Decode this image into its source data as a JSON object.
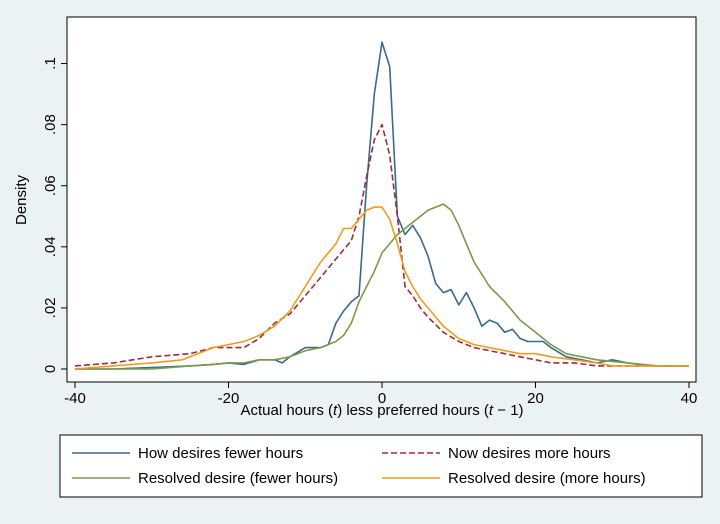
{
  "chart_data": {
    "type": "line",
    "xlabel_parts": [
      "Actual hours (",
      "t",
      ") less preferred hours (",
      "t",
      " − 1)"
    ],
    "ylabel": "Density",
    "xlim": [
      -40,
      40
    ],
    "ylim": [
      0,
      0.11
    ],
    "xticks": [
      -40,
      -20,
      0,
      20,
      40
    ],
    "xtick_labels": [
      "-40",
      "-20",
      "0",
      "20",
      "40"
    ],
    "yticks": [
      0,
      0.02,
      0.04,
      0.06,
      0.08,
      0.1
    ],
    "ytick_labels": [
      "0",
      ".02",
      ".04",
      ".06",
      ".08",
      ".1"
    ],
    "grid": false,
    "legend_position": "bottom",
    "series": [
      {
        "name": "How desires fewer hours",
        "color": "#3a6a8e",
        "dash": "solid",
        "x": [
          -40,
          -35,
          -30,
          -25,
          -22,
          -20,
          -18,
          -16,
          -14,
          -13,
          -12,
          -10,
          -9,
          -8,
          -7,
          -6,
          -5,
          -4,
          -3,
          -2,
          -1,
          0,
          1,
          2,
          3,
          4,
          5,
          6,
          7,
          8,
          9,
          10,
          11,
          12,
          13,
          14,
          15,
          16,
          17,
          18,
          19,
          20,
          21,
          22,
          24,
          26,
          28,
          30,
          32,
          35,
          40
        ],
        "y": [
          0.0,
          0.0,
          0.0005,
          0.001,
          0.0015,
          0.002,
          0.0015,
          0.003,
          0.003,
          0.002,
          0.004,
          0.007,
          0.007,
          0.007,
          0.008,
          0.015,
          0.019,
          0.022,
          0.024,
          0.06,
          0.09,
          0.107,
          0.099,
          0.05,
          0.044,
          0.047,
          0.043,
          0.037,
          0.028,
          0.025,
          0.026,
          0.021,
          0.025,
          0.02,
          0.014,
          0.016,
          0.015,
          0.012,
          0.013,
          0.01,
          0.009,
          0.009,
          0.009,
          0.007,
          0.004,
          0.003,
          0.002,
          0.003,
          0.002,
          0.001,
          0.001
        ]
      },
      {
        "name": "Now desires more hours",
        "color": "#9b2d3c",
        "dash": "dashed",
        "x": [
          -40,
          -35,
          -30,
          -25,
          -22,
          -20,
          -18,
          -16,
          -14,
          -12,
          -10,
          -8,
          -6,
          -4,
          -3,
          -2,
          -1,
          0,
          1,
          2,
          3,
          4,
          5,
          6,
          8,
          10,
          12,
          14,
          16,
          18,
          20,
          22,
          25,
          28,
          30,
          35,
          40
        ],
        "y": [
          0.001,
          0.002,
          0.004,
          0.005,
          0.007,
          0.007,
          0.007,
          0.01,
          0.015,
          0.018,
          0.024,
          0.03,
          0.036,
          0.042,
          0.05,
          0.063,
          0.075,
          0.08,
          0.07,
          0.05,
          0.027,
          0.024,
          0.02,
          0.017,
          0.012,
          0.009,
          0.007,
          0.006,
          0.005,
          0.004,
          0.003,
          0.002,
          0.002,
          0.001,
          0.001,
          0.001,
          0.001
        ]
      },
      {
        "name": "Resolved desire (fewer hours)",
        "color": "#7a9a4a",
        "dash": "solid",
        "x": [
          -40,
          -35,
          -30,
          -25,
          -22,
          -20,
          -18,
          -16,
          -14,
          -12,
          -10,
          -8,
          -6,
          -5,
          -4,
          -3,
          -2,
          -1,
          0,
          2,
          4,
          6,
          7,
          8,
          9,
          10,
          11,
          12,
          14,
          16,
          18,
          20,
          22,
          24,
          28,
          32,
          36,
          40
        ],
        "y": [
          0.0,
          0.0,
          0.0,
          0.001,
          0.0015,
          0.002,
          0.002,
          0.003,
          0.003,
          0.004,
          0.006,
          0.007,
          0.009,
          0.011,
          0.015,
          0.022,
          0.027,
          0.032,
          0.038,
          0.044,
          0.048,
          0.052,
          0.053,
          0.054,
          0.052,
          0.047,
          0.041,
          0.035,
          0.027,
          0.022,
          0.016,
          0.012,
          0.008,
          0.005,
          0.003,
          0.002,
          0.001,
          0.001
        ]
      },
      {
        "name": "Resolved desire (more hours)",
        "color": "#f29b1d",
        "dash": "solid",
        "x": [
          -40,
          -35,
          -30,
          -26,
          -24,
          -22,
          -20,
          -18,
          -16,
          -14,
          -12,
          -10,
          -8,
          -6,
          -5,
          -4,
          -3,
          -2,
          -1,
          0,
          1,
          2,
          3,
          4,
          5,
          6,
          8,
          10,
          12,
          14,
          16,
          18,
          20,
          22,
          25,
          28,
          30,
          35,
          40
        ],
        "y": [
          0.0,
          0.001,
          0.002,
          0.003,
          0.005,
          0.007,
          0.008,
          0.009,
          0.011,
          0.014,
          0.019,
          0.027,
          0.035,
          0.041,
          0.046,
          0.046,
          0.049,
          0.052,
          0.053,
          0.053,
          0.049,
          0.041,
          0.032,
          0.027,
          0.023,
          0.02,
          0.014,
          0.01,
          0.008,
          0.007,
          0.006,
          0.005,
          0.005,
          0.004,
          0.003,
          0.002,
          0.001,
          0.001,
          0.001
        ]
      }
    ]
  }
}
